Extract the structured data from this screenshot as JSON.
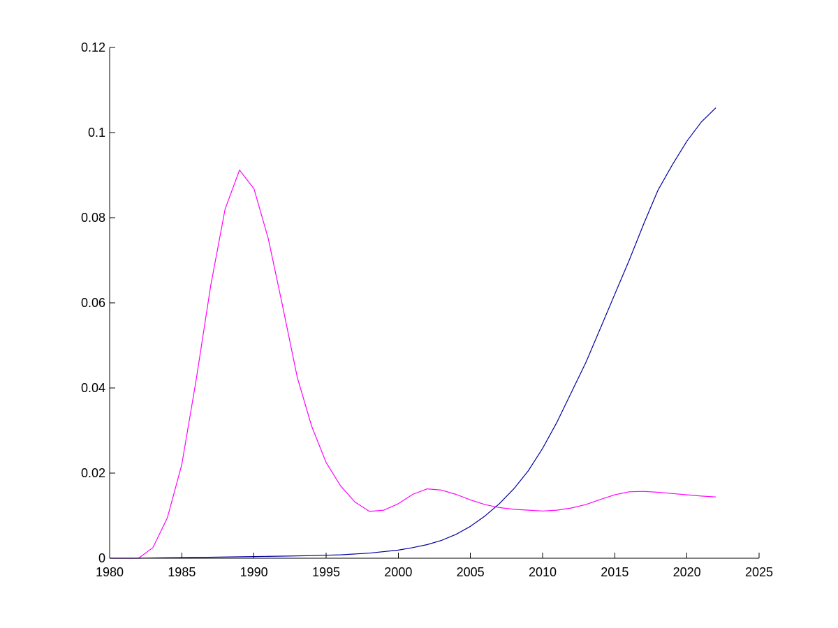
{
  "chart_data": {
    "type": "line",
    "title": "",
    "xlabel": "",
    "ylabel": "",
    "xlim": [
      1980,
      2025
    ],
    "ylim": [
      0,
      0.12
    ],
    "grid": false,
    "legend": "none",
    "x_ticks": [
      "1980",
      "1985",
      "1990",
      "1995",
      "2000",
      "2005",
      "2010",
      "2015",
      "2020",
      "2025"
    ],
    "y_ticks": [
      "0",
      "0.02",
      "0.04",
      "0.06",
      "0.08",
      "0.1",
      "0.12"
    ],
    "x_tick_values": [
      1980,
      1985,
      1990,
      1995,
      2000,
      2005,
      2010,
      2015,
      2020,
      2025
    ],
    "y_tick_values": [
      0,
      0.02,
      0.04,
      0.06,
      0.08,
      0.1,
      0.12
    ],
    "series": [
      {
        "color": "#ff00ff",
        "points": [
          [
            1980,
            0.0
          ],
          [
            1981,
            0.0
          ],
          [
            1982,
            0.0
          ],
          [
            1983,
            0.0025
          ],
          [
            1984,
            0.0095
          ],
          [
            1985,
            0.022
          ],
          [
            1986,
            0.042
          ],
          [
            1987,
            0.064
          ],
          [
            1988,
            0.082
          ],
          [
            1989,
            0.0912
          ],
          [
            1990,
            0.0868
          ],
          [
            1991,
            0.075
          ],
          [
            1992,
            0.059
          ],
          [
            1993,
            0.0425
          ],
          [
            1994,
            0.031
          ],
          [
            1995,
            0.0225
          ],
          [
            1996,
            0.017
          ],
          [
            1997,
            0.0132
          ],
          [
            1998,
            0.011
          ],
          [
            1999,
            0.0113
          ],
          [
            2000,
            0.0128
          ],
          [
            2001,
            0.015
          ],
          [
            2002,
            0.0163
          ],
          [
            2003,
            0.016
          ],
          [
            2004,
            0.015
          ],
          [
            2005,
            0.0137
          ],
          [
            2006,
            0.0126
          ],
          [
            2007,
            0.0119
          ],
          [
            2008,
            0.0115
          ],
          [
            2009,
            0.0113
          ],
          [
            2010,
            0.0111
          ],
          [
            2011,
            0.0113
          ],
          [
            2012,
            0.0118
          ],
          [
            2013,
            0.0126
          ],
          [
            2014,
            0.0138
          ],
          [
            2015,
            0.0149
          ],
          [
            2016,
            0.0156
          ],
          [
            2017,
            0.0157
          ],
          [
            2018,
            0.0155
          ],
          [
            2019,
            0.0152
          ],
          [
            2020,
            0.0149
          ],
          [
            2021,
            0.0146
          ],
          [
            2022,
            0.0144
          ]
        ]
      },
      {
        "color": "#0000a0",
        "points": [
          [
            1980,
            0.0
          ],
          [
            1982,
            0.0
          ],
          [
            1984,
            0.0001
          ],
          [
            1986,
            0.0002
          ],
          [
            1988,
            0.0003
          ],
          [
            1990,
            0.0004
          ],
          [
            1992,
            0.0005
          ],
          [
            1994,
            0.0006
          ],
          [
            1996,
            0.0008
          ],
          [
            1998,
            0.0012
          ],
          [
            2000,
            0.0019
          ],
          [
            2001,
            0.0025
          ],
          [
            2002,
            0.0032
          ],
          [
            2003,
            0.0042
          ],
          [
            2004,
            0.0056
          ],
          [
            2005,
            0.0075
          ],
          [
            2006,
            0.0099
          ],
          [
            2007,
            0.0128
          ],
          [
            2008,
            0.0163
          ],
          [
            2009,
            0.0205
          ],
          [
            2010,
            0.0258
          ],
          [
            2011,
            0.032
          ],
          [
            2012,
            0.039
          ],
          [
            2013,
            0.046
          ],
          [
            2014,
            0.054
          ],
          [
            2015,
            0.062
          ],
          [
            2016,
            0.07
          ],
          [
            2017,
            0.0785
          ],
          [
            2018,
            0.0865
          ],
          [
            2019,
            0.0925
          ],
          [
            2020,
            0.098
          ],
          [
            2021,
            0.1025
          ],
          [
            2022,
            0.1058
          ]
        ]
      }
    ]
  }
}
